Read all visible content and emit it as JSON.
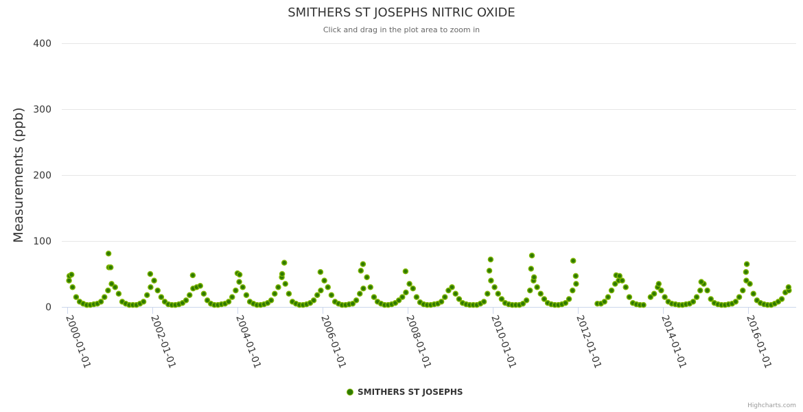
{
  "chart_data": {
    "type": "scatter",
    "title": "SMITHERS ST JOSEPHS NITRIC OXIDE",
    "subtitle": "Click and drag in the plot area to zoom in",
    "ylabel": "Measurements (ppb)",
    "xlabel": "",
    "ylim": [
      0,
      400
    ],
    "yticks": [
      0,
      100,
      200,
      300,
      400
    ],
    "xticks": [
      "2000-01-01",
      "2002-01-01",
      "2004-01-01",
      "2006-01-01",
      "2008-01-01",
      "2010-01-01",
      "2012-01-01",
      "2014-01-01",
      "2016-01-01"
    ],
    "xlim_years": [
      1999.9,
      2017.0
    ],
    "grid": true,
    "legend": {
      "position": "bottom-center",
      "entries": [
        "SMITHERS ST JOSEPHS"
      ]
    },
    "colors": {
      "fill": "#2f7a00",
      "stroke": "#7db500"
    },
    "series": [
      {
        "name": "SMITHERS ST JOSEPHS",
        "monthly_by_year": {
          "2000": [
            40,
            30,
            15,
            8,
            5,
            3,
            3,
            4,
            5,
            8,
            15,
            25
          ],
          "2001": [
            35,
            30,
            20,
            8,
            5,
            3,
            3,
            3,
            5,
            8,
            18,
            30
          ],
          "2002": [
            40,
            25,
            15,
            8,
            4,
            3,
            3,
            4,
            6,
            10,
            18,
            28
          ],
          "2003": [
            30,
            32,
            20,
            10,
            5,
            3,
            3,
            4,
            5,
            8,
            15,
            25
          ],
          "2004": [
            38,
            30,
            18,
            8,
            5,
            3,
            3,
            4,
            6,
            10,
            20,
            30
          ],
          "2005": [
            45,
            35,
            20,
            8,
            5,
            3,
            3,
            4,
            6,
            10,
            18,
            25
          ],
          "2006": [
            40,
            30,
            18,
            8,
            5,
            3,
            3,
            4,
            5,
            10,
            20,
            28
          ],
          "2007": [
            45,
            30,
            15,
            8,
            5,
            3,
            3,
            4,
            6,
            10,
            15,
            22
          ],
          "2008": [
            35,
            28,
            15,
            7,
            4,
            3,
            3,
            4,
            5,
            8,
            15,
            25
          ],
          "2009": [
            30,
            20,
            12,
            6,
            4,
            3,
            3,
            3,
            5,
            8,
            20,
            40
          ],
          "2010": [
            30,
            20,
            12,
            6,
            4,
            3,
            3,
            3,
            5,
            10,
            25,
            40
          ],
          "2011": [
            30,
            20,
            12,
            6,
            4,
            3,
            3,
            4,
            6,
            12,
            25,
            35
          ],
          "2012": [
            null,
            null,
            null,
            null,
            null,
            5,
            5,
            8,
            15,
            25,
            35,
            40
          ],
          "2013": [
            40,
            30,
            15,
            6,
            4,
            3,
            3,
            null,
            15,
            20,
            30,
            25
          ],
          "2014": [
            15,
            8,
            5,
            4,
            3,
            3,
            4,
            5,
            8,
            15,
            25,
            35
          ],
          "2015": [
            25,
            12,
            6,
            4,
            3,
            3,
            4,
            5,
            8,
            15,
            25,
            40
          ],
          "2016": [
            35,
            20,
            10,
            6,
            4,
            3,
            3,
            5,
            8,
            12,
            22,
            25
          ]
        },
        "peaks": [
          [
            2000.05,
            47
          ],
          [
            2000.1,
            49
          ],
          [
            2000.97,
            81
          ],
          [
            2000.98,
            60
          ],
          [
            2001.02,
            60
          ],
          [
            2001.95,
            50
          ],
          [
            2002.95,
            48
          ],
          [
            2004.0,
            51
          ],
          [
            2004.05,
            49
          ],
          [
            2005.1,
            67
          ],
          [
            2005.05,
            50
          ],
          [
            2005.95,
            53
          ],
          [
            2006.95,
            65
          ],
          [
            2006.9,
            55
          ],
          [
            2007.95,
            54
          ],
          [
            2009.95,
            72
          ],
          [
            2009.92,
            55
          ],
          [
            2010.92,
            78
          ],
          [
            2010.9,
            58
          ],
          [
            2010.97,
            45
          ],
          [
            2011.89,
            70
          ],
          [
            2011.95,
            47
          ],
          [
            2012.9,
            48
          ],
          [
            2012.98,
            47
          ],
          [
            2013.9,
            35
          ],
          [
            2014.9,
            38
          ],
          [
            2015.97,
            65
          ],
          [
            2015.95,
            53
          ],
          [
            2016.95,
            30
          ]
        ]
      }
    ]
  }
}
